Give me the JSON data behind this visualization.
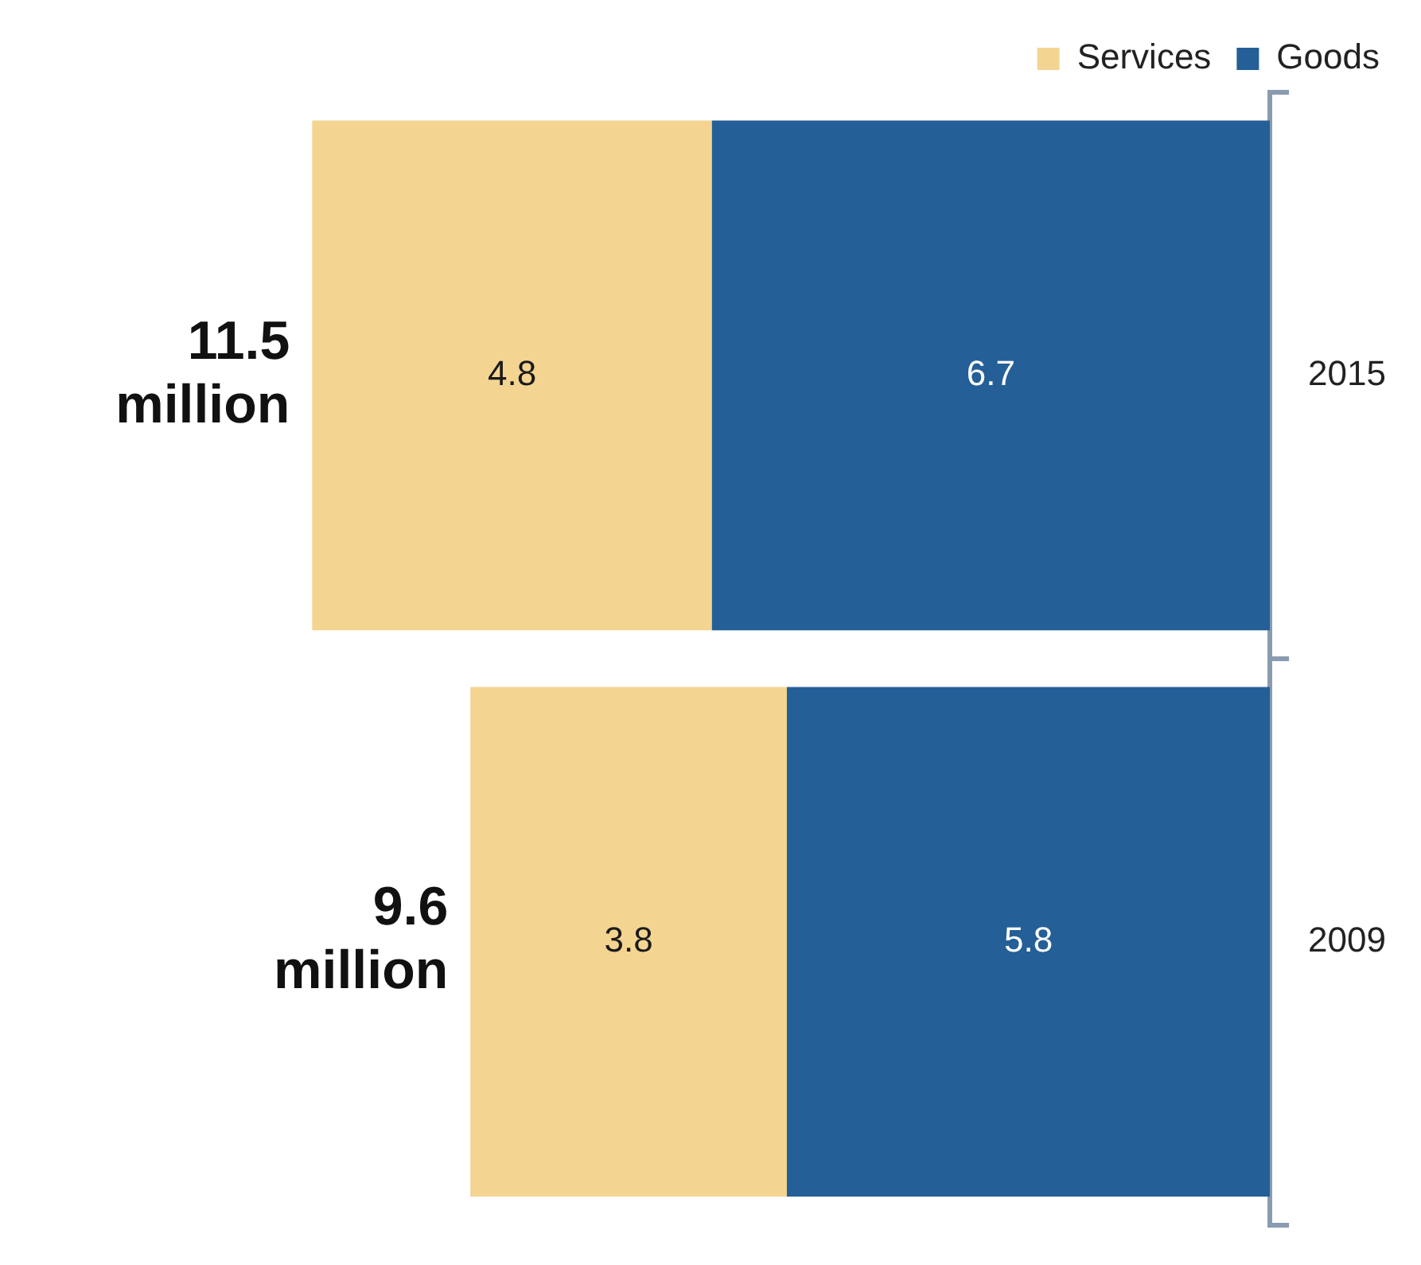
{
  "chart_data": {
    "type": "bar",
    "stacked": true,
    "orientation": "horizontal",
    "categories": [
      "2015",
      "2009"
    ],
    "series": [
      {
        "name": "Goods",
        "color": "#245f97",
        "values": [
          6.7,
          5.8
        ]
      },
      {
        "name": "Services",
        "color": "#f3d491",
        "values": [
          4.8,
          3.8
        ]
      }
    ],
    "data_labels": true,
    "totals": [
      "11.5 million",
      "9.6 million"
    ],
    "legend": "top right",
    "tick_labels": "y"
  }
}
